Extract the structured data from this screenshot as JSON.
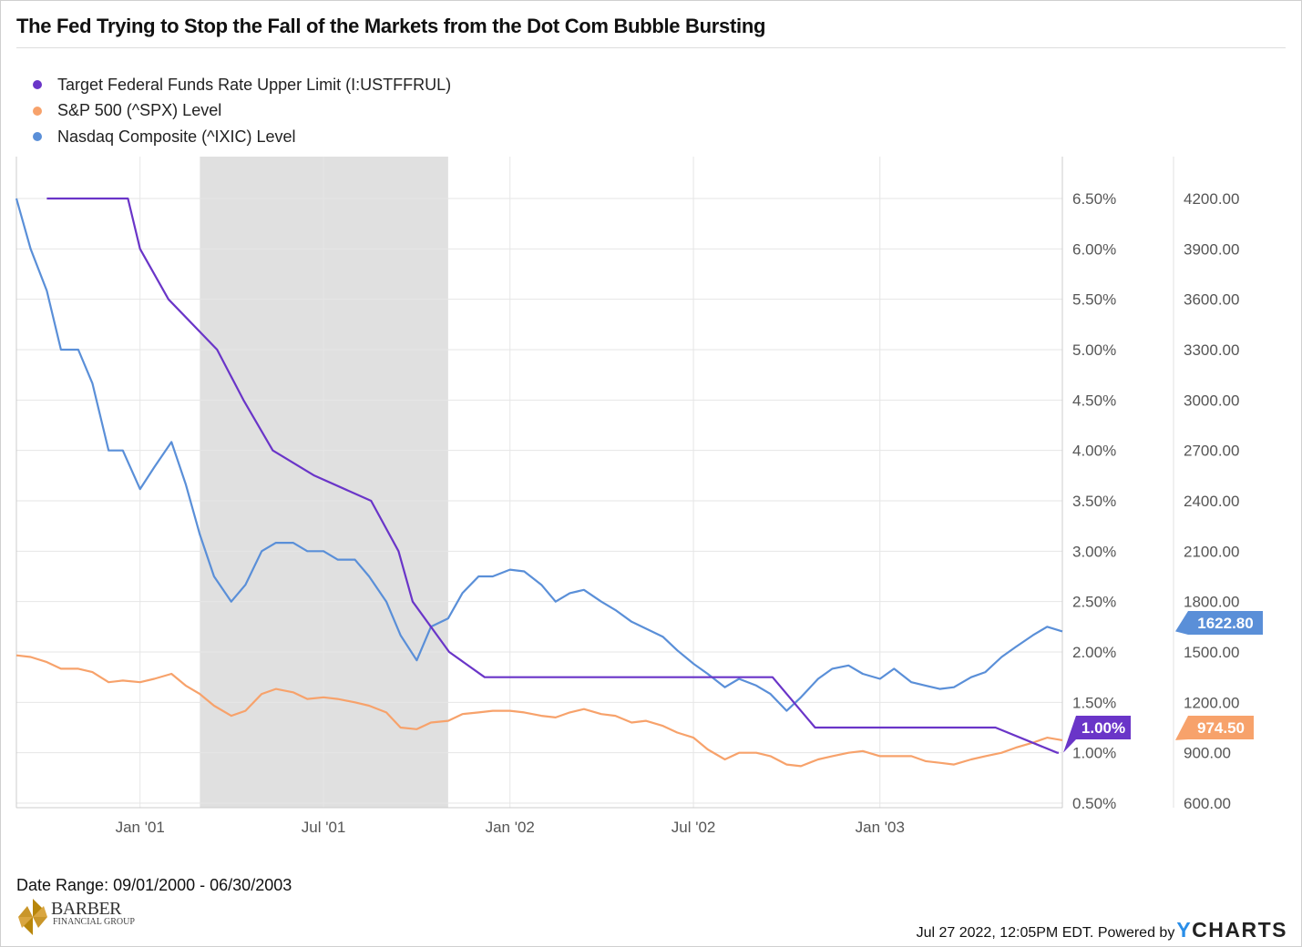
{
  "title": "The Fed Trying to Stop the Fall of the Markets from  the Dot Com Bubble Bursting",
  "legend": [
    {
      "label": "Target Federal Funds Rate Upper Limit (I:USTFFRUL)",
      "color": "#6a35c8"
    },
    {
      "label": "S&P 500 (^SPX) Level",
      "color": "#f7a26b"
    },
    {
      "label": "Nasdaq Composite (^IXIC) Level",
      "color": "#5a8fd8"
    }
  ],
  "footer": {
    "date_range": "Date Range: 09/01/2000 - 06/30/2003",
    "timestamp": "Jul 27 2022, 12:05PM EDT. Powered by",
    "brand_y": "Y",
    "brand_rest": "CHARTS",
    "logo_name": "BARBER",
    "logo_sub": "FINANCIAL GROUP"
  },
  "chart_data": {
    "type": "line",
    "title": "The Fed Trying to Stop the Fall of the Markets from  the Dot Com Bubble Bursting",
    "xlim": [
      "2000-09-01",
      "2003-06-30"
    ],
    "x_ticks": [
      {
        "date": "2001-01-01",
        "label": "Jan '01"
      },
      {
        "date": "2001-07-01",
        "label": "Jul '01"
      },
      {
        "date": "2002-01-01",
        "label": "Jan '02"
      },
      {
        "date": "2002-07-01",
        "label": "Jul '02"
      },
      {
        "date": "2003-01-01",
        "label": "Jan '03"
      }
    ],
    "y_left": {
      "range": [
        0.5,
        6.5
      ],
      "ticks": [
        6.5,
        6.0,
        5.5,
        5.0,
        4.5,
        4.0,
        3.5,
        3.0,
        2.5,
        2.0,
        1.5,
        1.0,
        0.5
      ],
      "tick_labels": [
        "6.50%",
        "6.00%",
        "5.50%",
        "5.00%",
        "4.50%",
        "4.00%",
        "3.50%",
        "3.00%",
        "2.50%",
        "2.00%",
        "1.50%",
        "1.00%",
        "0.50%"
      ]
    },
    "y_right": {
      "range": [
        600,
        4200
      ],
      "ticks": [
        4200,
        3900,
        3600,
        3300,
        3000,
        2700,
        2400,
        2100,
        1800,
        1500,
        1200,
        900,
        600
      ],
      "tick_labels": [
        "4200.00",
        "3900.00",
        "3600.00",
        "3300.00",
        "3000.00",
        "2700.00",
        "2400.00",
        "2100.00",
        "1800.00",
        "1500.00",
        "1200.00",
        "900.00",
        "600.00"
      ]
    },
    "grid": true,
    "legend_position": "top-left",
    "shaded_region": {
      "start": "2001-03-01",
      "end": "2001-11-01",
      "color": "#e0e0e0"
    },
    "fed_funds": {
      "name": "Target Federal Funds Rate Upper Limit (I:USTFFRUL)",
      "axis": "left",
      "color": "#6a35c8",
      "points": [
        [
          "2000-10-01",
          6.5
        ],
        [
          "2000-12-20",
          6.5
        ],
        [
          "2001-01-01",
          6.0
        ],
        [
          "2001-01-29",
          5.5
        ],
        [
          "2001-03-18",
          5.0
        ],
        [
          "2001-04-13",
          4.5
        ],
        [
          "2001-05-12",
          4.0
        ],
        [
          "2001-06-22",
          3.75
        ],
        [
          "2001-08-17",
          3.5
        ],
        [
          "2001-09-13",
          3.0
        ],
        [
          "2001-09-27",
          2.5
        ],
        [
          "2001-11-02",
          2.0
        ],
        [
          "2001-12-07",
          1.75
        ],
        [
          "2002-09-17",
          1.75
        ],
        [
          "2002-10-29",
          1.25
        ],
        [
          "2003-04-25",
          1.25
        ],
        [
          "2003-06-25",
          1.0
        ]
      ],
      "last_label": "1.00%"
    },
    "dates": [
      "2000-09-01",
      "2000-09-15",
      "2000-10-01",
      "2000-10-15",
      "2000-11-01",
      "2000-11-15",
      "2000-12-01",
      "2000-12-15",
      "2001-01-01",
      "2001-01-15",
      "2001-02-01",
      "2001-02-15",
      "2001-03-01",
      "2001-03-15",
      "2001-04-01",
      "2001-04-15",
      "2001-05-01",
      "2001-05-15",
      "2001-06-01",
      "2001-06-15",
      "2001-07-01",
      "2001-07-15",
      "2001-08-01",
      "2001-08-15",
      "2001-09-01",
      "2001-09-15",
      "2001-10-01",
      "2001-10-15",
      "2001-11-01",
      "2001-11-15",
      "2001-12-01",
      "2001-12-15",
      "2002-01-01",
      "2002-01-15",
      "2002-02-01",
      "2002-02-15",
      "2002-03-01",
      "2002-03-15",
      "2002-04-01",
      "2002-04-15",
      "2002-05-01",
      "2002-05-15",
      "2002-06-01",
      "2002-06-15",
      "2002-07-01",
      "2002-07-15",
      "2002-08-01",
      "2002-08-15",
      "2002-09-01",
      "2002-09-15",
      "2002-10-01",
      "2002-10-15",
      "2002-11-01",
      "2002-11-15",
      "2002-12-01",
      "2002-12-15",
      "2003-01-01",
      "2003-01-15",
      "2003-02-01",
      "2003-02-15",
      "2003-03-01",
      "2003-03-15",
      "2003-04-01",
      "2003-04-15",
      "2003-05-01",
      "2003-05-15",
      "2003-06-01",
      "2003-06-15",
      "2003-06-30"
    ],
    "spx": {
      "name": "S&P 500 (^SPX) Level",
      "axis": "right",
      "color": "#f7a26b",
      "values": [
        1480,
        1470,
        1440,
        1400,
        1400,
        1380,
        1320,
        1330,
        1320,
        1340,
        1370,
        1300,
        1250,
        1180,
        1120,
        1150,
        1250,
        1280,
        1260,
        1220,
        1230,
        1220,
        1200,
        1180,
        1140,
        1050,
        1040,
        1080,
        1090,
        1130,
        1140,
        1150,
        1150,
        1140,
        1120,
        1110,
        1140,
        1160,
        1130,
        1120,
        1080,
        1090,
        1060,
        1020,
        990,
        920,
        860,
        900,
        900,
        880,
        830,
        820,
        860,
        880,
        900,
        910,
        880,
        880,
        880,
        850,
        840,
        830,
        860,
        880,
        900,
        930,
        960,
        990,
        974.5
      ],
      "last_label": "974.50"
    },
    "nasdaq": {
      "name": "Nasdaq Composite (^IXIC) Level",
      "axis": "right",
      "color": "#5a8fd8",
      "values": [
        4200,
        3900,
        3650,
        3300,
        3300,
        3100,
        2700,
        2700,
        2470,
        2600,
        2750,
        2500,
        2200,
        1950,
        1800,
        1900,
        2100,
        2150,
        2150,
        2100,
        2100,
        2050,
        2050,
        1950,
        1800,
        1600,
        1450,
        1650,
        1700,
        1850,
        1950,
        1950,
        1990,
        1980,
        1900,
        1800,
        1850,
        1870,
        1800,
        1750,
        1680,
        1640,
        1590,
        1510,
        1430,
        1370,
        1290,
        1340,
        1300,
        1250,
        1150,
        1230,
        1340,
        1400,
        1420,
        1370,
        1340,
        1400,
        1320,
        1300,
        1280,
        1290,
        1350,
        1380,
        1470,
        1530,
        1600,
        1650,
        1622.8
      ],
      "last_label": "1622.80"
    }
  }
}
